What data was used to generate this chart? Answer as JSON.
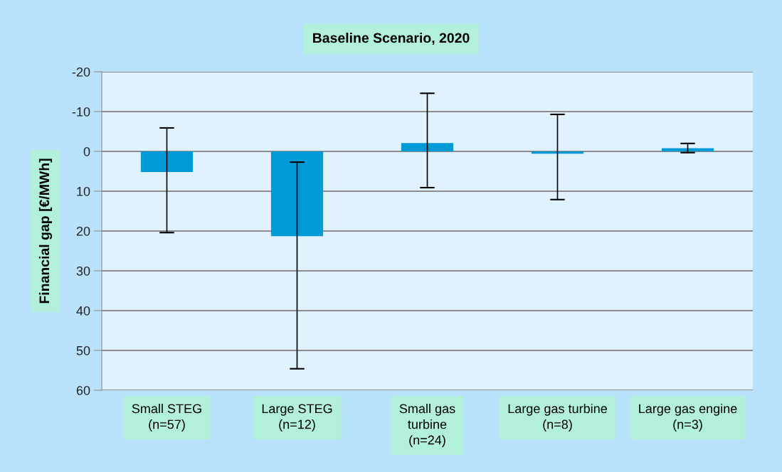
{
  "chart_data": {
    "type": "bar",
    "title": "Baseline Scenario, 2020",
    "ylabel": "Financial gap [€/MWh]",
    "categories": [
      "Small STEG\n(n=57)",
      "Large STEG\n(n=12)",
      "Small gas\nturbine\n(n=24)",
      "Large gas turbine\n(n=8)",
      "Large gas engine\n(n=3)"
    ],
    "values": [
      5.2,
      21.3,
      -2.1,
      0.6,
      -0.8
    ],
    "errors": [
      [
        -5.9,
        20.4
      ],
      [
        2.7,
        54.6
      ],
      [
        -14.6,
        9.1
      ],
      [
        -9.3,
        12.1
      ],
      [
        -2.0,
        0.3
      ]
    ],
    "color": "#009ad6",
    "ylim": [
      60,
      -20
    ],
    "yticks": [
      -20,
      -10,
      0,
      10,
      20,
      30,
      40,
      50,
      60
    ],
    "grid": "y"
  }
}
